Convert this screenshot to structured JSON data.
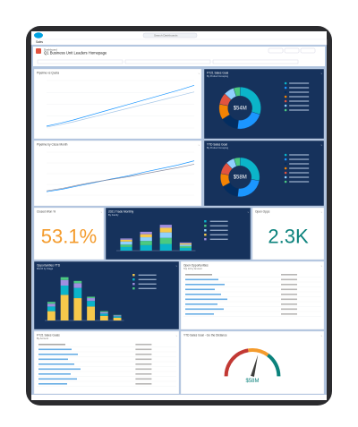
{
  "nav": {
    "app": "Sales",
    "search": "Search Dashboards"
  },
  "dashboard": {
    "label": "Dashboard",
    "title": "Q1 Business Unit Leaders Homepage"
  },
  "panels": [
    {
      "type": "line",
      "title": "Pipeline vs Quota",
      "ylim": [
        0,
        100
      ],
      "series": [
        {
          "color": "#1b96ff",
          "values": [
            4,
            10,
            17,
            25,
            33,
            41,
            49,
            57,
            65,
            73,
            81,
            90
          ]
        },
        {
          "color": "#a8c8e8",
          "values": [
            2,
            7,
            13,
            20,
            27,
            34,
            41,
            48,
            55,
            62,
            69,
            76
          ]
        }
      ]
    },
    {
      "type": "donut",
      "title": "FY21 Sales Goal",
      "subtitle": "By Product Grouping",
      "center_label": "$54M",
      "colors": [
        "#0bb4c9",
        "#1b96ff",
        "#032d60",
        "#f38303",
        "#e2533f",
        "#90d0fe",
        "#4bca81"
      ],
      "values": [
        30,
        22,
        14,
        12,
        9,
        8,
        5
      ]
    },
    {
      "type": "line",
      "title": "Pipeline by Close Month",
      "ylim": [
        0,
        100
      ],
      "series": [
        {
          "color": "#1b96ff",
          "values": [
            8,
            14,
            22,
            30,
            38,
            45,
            54,
            62,
            70,
            80
          ]
        },
        {
          "color": "#8a8fa3",
          "values": [
            10,
            16,
            24,
            31,
            37,
            43,
            50,
            57,
            64,
            72
          ]
        }
      ]
    },
    {
      "type": "donut",
      "title": "YTD Sales Goal",
      "subtitle": "By Product Grouping",
      "center_label": "$58M",
      "colors": [
        "#0bb4c9",
        "#1b96ff",
        "#032d60",
        "#f38303",
        "#e2533f",
        "#90d0fe",
        "#4bca81"
      ],
      "values": [
        28,
        24,
        15,
        11,
        10,
        7,
        5
      ]
    },
    {
      "type": "metric",
      "title": "Closed Won %",
      "value_label": "53.1%",
      "color": "#f49b2c"
    },
    {
      "type": "stacked",
      "title": "2021 Trade Monthly",
      "subtitle": "By Family",
      "ylim": [
        0,
        100
      ],
      "colors": [
        "#0bb4c9",
        "#4bca81",
        "#90d0fe",
        "#f6c94b",
        "#a08ee0"
      ],
      "series": [
        [
          12,
          18,
          22,
          9
        ],
        [
          8,
          14,
          20,
          6
        ],
        [
          10,
          12,
          18,
          5
        ],
        [
          6,
          10,
          15,
          4
        ],
        [
          4,
          8,
          10,
          3
        ]
      ]
    },
    {
      "type": "metric",
      "title": "Open Opps",
      "value_label": "2.3K",
      "color": "#0b827c"
    },
    {
      "type": "stacked",
      "title": "Opportunities YTD",
      "subtitle": "Month by Stage",
      "ylim": [
        0,
        100
      ],
      "colors": [
        "#f6c94b",
        "#0bb4c9",
        "#a08ee0",
        "#4bca81"
      ],
      "series": [
        [
          20,
          55,
          48,
          30,
          10,
          6
        ],
        [
          10,
          20,
          22,
          12,
          5,
          3
        ],
        [
          6,
          12,
          10,
          6,
          3,
          2
        ],
        [
          4,
          6,
          5,
          3,
          2,
          1
        ]
      ]
    },
    {
      "type": "table",
      "title": "Open Opportunities",
      "subtitle": "Top 10 by Amount"
    },
    {
      "type": "table",
      "title": "FY21 Sales Goals",
      "subtitle": "By Account"
    },
    {
      "type": "gauge",
      "title": "YTD Sales Goal - Go the Distance",
      "ylim": [
        0,
        100
      ],
      "value": 58,
      "value_label": "$58M"
    }
  ]
}
